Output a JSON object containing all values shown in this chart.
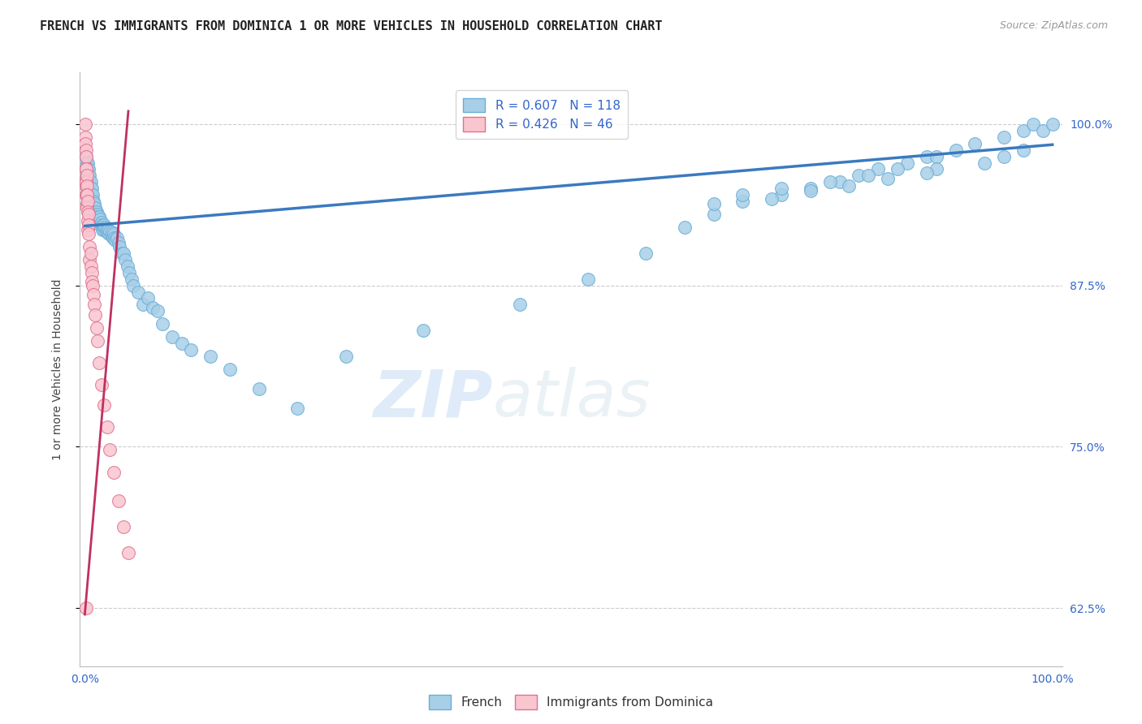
{
  "title": "FRENCH VS IMMIGRANTS FROM DOMINICA 1 OR MORE VEHICLES IN HOUSEHOLD CORRELATION CHART",
  "source": "Source: ZipAtlas.com",
  "ylabel": "1 or more Vehicles in Household",
  "yticks": [
    0.625,
    0.75,
    0.875,
    1.0
  ],
  "ytick_labels": [
    "62.5%",
    "75.0%",
    "87.5%",
    "100.0%"
  ],
  "legend_french": "R = 0.607   N = 118",
  "legend_dominica": "R = 0.426   N = 46",
  "legend_bottom_french": "French",
  "legend_bottom_dominica": "Immigrants from Dominica",
  "french_color": "#a8cfe8",
  "french_edge": "#6aaed6",
  "dominica_color": "#f9c6d0",
  "dominica_edge": "#e07090",
  "trend_french_color": "#3a7abf",
  "trend_dominica_color": "#c03060",
  "background_color": "#ffffff",
  "watermark_zip": "ZIP",
  "watermark_atlas": "atlas",
  "title_fontsize": 11,
  "axis_fontsize": 10,
  "french_x": [
    0.001,
    0.002,
    0.002,
    0.002,
    0.003,
    0.003,
    0.003,
    0.003,
    0.004,
    0.004,
    0.004,
    0.005,
    0.005,
    0.005,
    0.006,
    0.006,
    0.006,
    0.007,
    0.007,
    0.007,
    0.008,
    0.008,
    0.008,
    0.009,
    0.009,
    0.01,
    0.01,
    0.01,
    0.011,
    0.011,
    0.012,
    0.012,
    0.013,
    0.013,
    0.014,
    0.015,
    0.015,
    0.016,
    0.016,
    0.017,
    0.018,
    0.018,
    0.019,
    0.02,
    0.02,
    0.021,
    0.022,
    0.023,
    0.024,
    0.025,
    0.026,
    0.027,
    0.028,
    0.029,
    0.03,
    0.031,
    0.032,
    0.033,
    0.035,
    0.036,
    0.038,
    0.04,
    0.042,
    0.044,
    0.046,
    0.048,
    0.05,
    0.055,
    0.06,
    0.065,
    0.07,
    0.075,
    0.08,
    0.09,
    0.1,
    0.11,
    0.13,
    0.15,
    0.18,
    0.22,
    0.27,
    0.35,
    0.45,
    0.52,
    0.58,
    0.62,
    0.65,
    0.68,
    0.72,
    0.75,
    0.78,
    0.8,
    0.82,
    0.85,
    0.87,
    0.88,
    0.9,
    0.92,
    0.95,
    0.97,
    0.98,
    0.99,
    1.0,
    0.68,
    0.72,
    0.77,
    0.81,
    0.84,
    0.88,
    0.93,
    0.95,
    0.97,
    0.65,
    0.71,
    0.75,
    0.79,
    0.83,
    0.87
  ],
  "french_y": [
    0.975,
    0.97,
    0.965,
    0.96,
    0.97,
    0.965,
    0.96,
    0.955,
    0.965,
    0.96,
    0.955,
    0.96,
    0.955,
    0.95,
    0.955,
    0.95,
    0.945,
    0.95,
    0.945,
    0.94,
    0.945,
    0.94,
    0.935,
    0.94,
    0.935,
    0.938,
    0.935,
    0.93,
    0.935,
    0.93,
    0.932,
    0.928,
    0.93,
    0.925,
    0.928,
    0.928,
    0.924,
    0.926,
    0.922,
    0.924,
    0.922,
    0.918,
    0.92,
    0.922,
    0.918,
    0.92,
    0.918,
    0.916,
    0.918,
    0.915,
    0.917,
    0.914,
    0.916,
    0.912,
    0.915,
    0.912,
    0.91,
    0.912,
    0.908,
    0.905,
    0.9,
    0.9,
    0.895,
    0.89,
    0.885,
    0.88,
    0.875,
    0.87,
    0.86,
    0.865,
    0.858,
    0.855,
    0.845,
    0.835,
    0.83,
    0.825,
    0.82,
    0.81,
    0.795,
    0.78,
    0.82,
    0.84,
    0.86,
    0.88,
    0.9,
    0.92,
    0.93,
    0.94,
    0.945,
    0.95,
    0.955,
    0.96,
    0.965,
    0.97,
    0.975,
    0.975,
    0.98,
    0.985,
    0.99,
    0.995,
    1.0,
    0.995,
    1.0,
    0.945,
    0.95,
    0.955,
    0.96,
    0.965,
    0.965,
    0.97,
    0.975,
    0.98,
    0.938,
    0.942,
    0.948,
    0.952,
    0.958,
    0.962
  ],
  "dominica_x": [
    0.0005,
    0.0005,
    0.0008,
    0.001,
    0.001,
    0.001,
    0.001,
    0.001,
    0.001,
    0.0015,
    0.0015,
    0.002,
    0.002,
    0.002,
    0.002,
    0.0025,
    0.0025,
    0.003,
    0.003,
    0.003,
    0.003,
    0.004,
    0.004,
    0.004,
    0.005,
    0.005,
    0.006,
    0.006,
    0.007,
    0.007,
    0.008,
    0.009,
    0.01,
    0.011,
    0.012,
    0.013,
    0.015,
    0.017,
    0.02,
    0.023,
    0.026,
    0.03,
    0.035,
    0.04,
    0.045,
    0.001
  ],
  "dominica_y": [
    1.0,
    0.99,
    0.985,
    0.98,
    0.975,
    0.965,
    0.958,
    0.952,
    0.945,
    0.965,
    0.955,
    0.96,
    0.952,
    0.945,
    0.938,
    0.945,
    0.935,
    0.94,
    0.932,
    0.925,
    0.918,
    0.93,
    0.922,
    0.915,
    0.905,
    0.895,
    0.9,
    0.89,
    0.885,
    0.878,
    0.875,
    0.868,
    0.86,
    0.852,
    0.842,
    0.832,
    0.815,
    0.798,
    0.782,
    0.765,
    0.748,
    0.73,
    0.708,
    0.688,
    0.668,
    0.625
  ],
  "xlim": [
    -0.005,
    1.01
  ],
  "ylim": [
    0.58,
    1.04
  ]
}
